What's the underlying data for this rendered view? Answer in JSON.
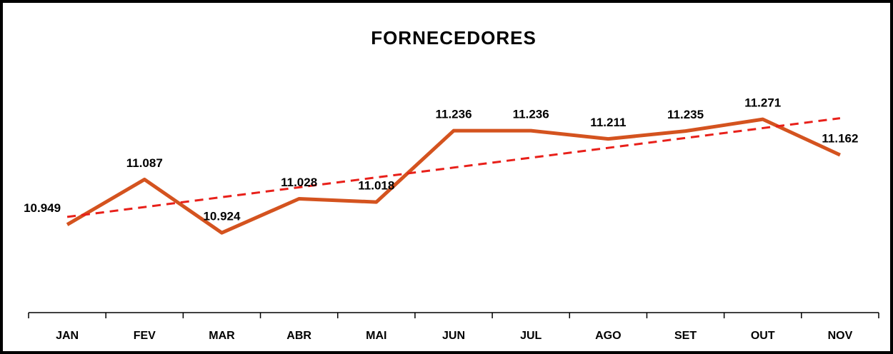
{
  "chart_data": {
    "type": "line",
    "title": "FORNECEDORES",
    "categories": [
      "JAN",
      "FEV",
      "MAR",
      "ABR",
      "MAI",
      "JUN",
      "JUL",
      "AGO",
      "SET",
      "OUT",
      "NOV"
    ],
    "values": [
      10949,
      11087,
      10924,
      11028,
      11018,
      11236,
      11236,
      11211,
      11235,
      11271,
      11162
    ],
    "value_labels": [
      "10.949",
      "11.087",
      "10.924",
      "11.028",
      "11.018",
      "11.236",
      "11.236",
      "11.211",
      "11.235",
      "11.271",
      "11.162"
    ],
    "color": "#d4531f",
    "ylim": [
      10680,
      11400
    ],
    "trendline": {
      "color": "#e8201a",
      "style": "dashed"
    }
  }
}
